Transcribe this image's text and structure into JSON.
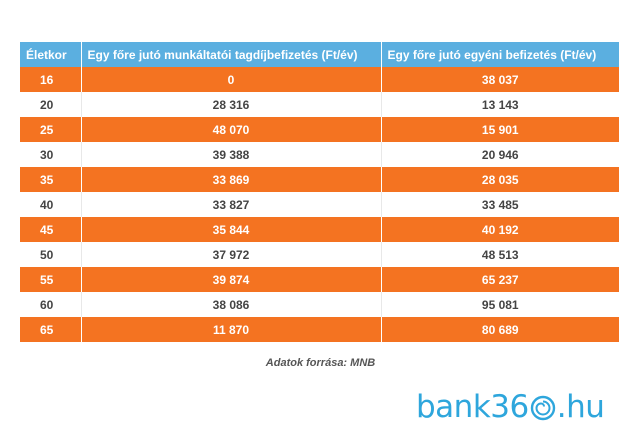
{
  "table": {
    "headers": [
      "Életkor",
      "Egy főre jutó munkáltatói tagdíjbefizetés (Ft/év)",
      "Egy főre jutó egyéni befizetés (Ft/év)"
    ],
    "rows": [
      {
        "age": "16",
        "employer": "0",
        "individual": "38 037"
      },
      {
        "age": "20",
        "employer": "28 316",
        "individual": "13 143"
      },
      {
        "age": "25",
        "employer": "48 070",
        "individual": "15 901"
      },
      {
        "age": "30",
        "employer": "39 388",
        "individual": "20 946"
      },
      {
        "age": "35",
        "employer": "33 869",
        "individual": "28 035"
      },
      {
        "age": "40",
        "employer": "33 827",
        "individual": "33 485"
      },
      {
        "age": "45",
        "employer": "35 844",
        "individual": "40 192"
      },
      {
        "age": "50",
        "employer": "37 972",
        "individual": "48 513"
      },
      {
        "age": "55",
        "employer": "39 874",
        "individual": "65 237"
      },
      {
        "age": "60",
        "employer": "38 086",
        "individual": "95 081"
      },
      {
        "age": "65",
        "employer": "11 870",
        "individual": "80 689"
      }
    ]
  },
  "source": "Adatok forrása: MNB",
  "logo": {
    "before": "bank36",
    "after": ".hu",
    "icon": "spiral-zero-icon",
    "color": "#2ea6dc"
  },
  "colors": {
    "header": "#5bafe0",
    "row_highlight": "#f47321"
  }
}
